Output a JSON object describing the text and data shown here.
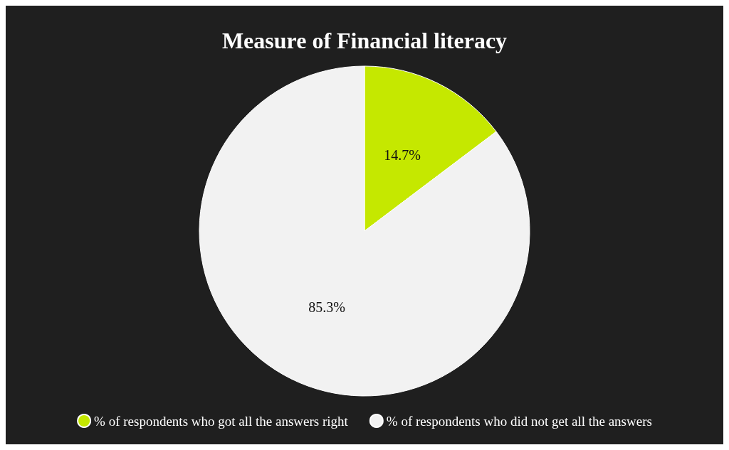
{
  "chart_data": {
    "type": "pie",
    "title": "Measure of Financial literacy",
    "categories": [
      "% of respondents who got all the answers right",
      "% of respondents who did not get all the answers"
    ],
    "values": [
      14.7,
      85.3
    ],
    "value_labels": [
      "14.7%",
      "85.3%"
    ],
    "colors": [
      "#c5e800",
      "#f2f2f2"
    ],
    "legend": "bottom"
  }
}
